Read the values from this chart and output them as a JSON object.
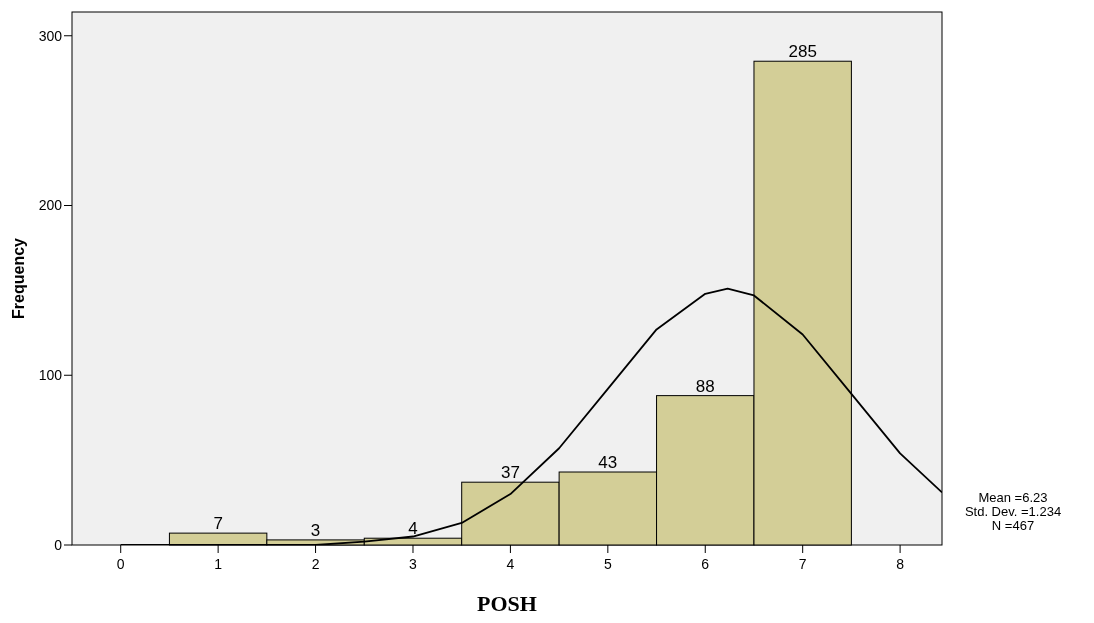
{
  "chart_data": {
    "type": "histogram",
    "xlabel": "POSH",
    "ylabel": "Frequency",
    "bins": [
      0.5,
      1.5,
      2.5,
      3.5,
      4.5,
      5.5,
      6.5,
      7.5
    ],
    "values": [
      7,
      3,
      4,
      37,
      43,
      88,
      285
    ],
    "color": "#d3ce97",
    "value_labels": [
      "7",
      "3",
      "4",
      "37",
      "43",
      "88",
      "285"
    ],
    "series": [
      {
        "type": "line",
        "color": "#000000",
        "x": [
          0,
          1,
          1.5,
          2,
          2.5,
          3,
          3.5,
          4,
          4.5,
          5,
          5.5,
          6,
          6.23,
          6.5,
          7,
          7.5,
          8,
          8.43
        ],
        "values": [
          0,
          0,
          0,
          0,
          2,
          5,
          13,
          30,
          57,
          92,
          127,
          148,
          151,
          147,
          124,
          89,
          54,
          31
        ]
      }
    ],
    "xlim": [
      -0.5,
      8.43
    ],
    "ylim": [
      0,
      314
    ],
    "xticks": [
      0,
      1,
      2,
      3,
      4,
      5,
      6,
      7,
      8
    ],
    "yticks": [
      0,
      100,
      200,
      300
    ],
    "grid": false,
    "annotations": [
      "Mean =6.23",
      "Std. Dev. =1.234",
      "N =467"
    ]
  }
}
